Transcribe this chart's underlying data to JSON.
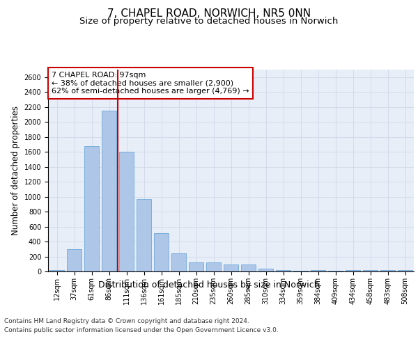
{
  "title_line1": "7, CHAPEL ROAD, NORWICH, NR5 0NN",
  "title_line2": "Size of property relative to detached houses in Norwich",
  "xlabel": "Distribution of detached houses by size in Norwich",
  "ylabel": "Number of detached properties",
  "categories": [
    "12sqm",
    "37sqm",
    "61sqm",
    "86sqm",
    "111sqm",
    "136sqm",
    "161sqm",
    "185sqm",
    "210sqm",
    "235sqm",
    "260sqm",
    "285sqm",
    "310sqm",
    "334sqm",
    "359sqm",
    "384sqm",
    "409sqm",
    "434sqm",
    "458sqm",
    "483sqm",
    "508sqm"
  ],
  "values": [
    20,
    300,
    1680,
    2150,
    1600,
    970,
    510,
    245,
    120,
    120,
    95,
    95,
    40,
    15,
    10,
    20,
    10,
    15,
    15,
    15,
    20
  ],
  "bar_color": "#aec6e8",
  "bar_edge_color": "#5a9fd4",
  "bar_width": 0.85,
  "annotation_text": "7 CHAPEL ROAD: 97sqm\n← 38% of detached houses are smaller (2,900)\n62% of semi-detached houses are larger (4,769) →",
  "annotation_box_color": "#ffffff",
  "annotation_box_edge_color": "#cc0000",
  "ylim": [
    0,
    2700
  ],
  "yticks": [
    0,
    200,
    400,
    600,
    800,
    1000,
    1200,
    1400,
    1600,
    1800,
    2000,
    2200,
    2400,
    2600
  ],
  "grid_color": "#d0d8e8",
  "background_color": "#e8eef8",
  "footer_line1": "Contains HM Land Registry data © Crown copyright and database right 2024.",
  "footer_line2": "Contains public sector information licensed under the Open Government Licence v3.0.",
  "red_line_color": "#cc0000",
  "title_fontsize": 11,
  "subtitle_fontsize": 9.5,
  "tick_fontsize": 7,
  "ylabel_fontsize": 8.5,
  "xlabel_fontsize": 9,
  "annotation_fontsize": 8,
  "footer_fontsize": 6.5
}
